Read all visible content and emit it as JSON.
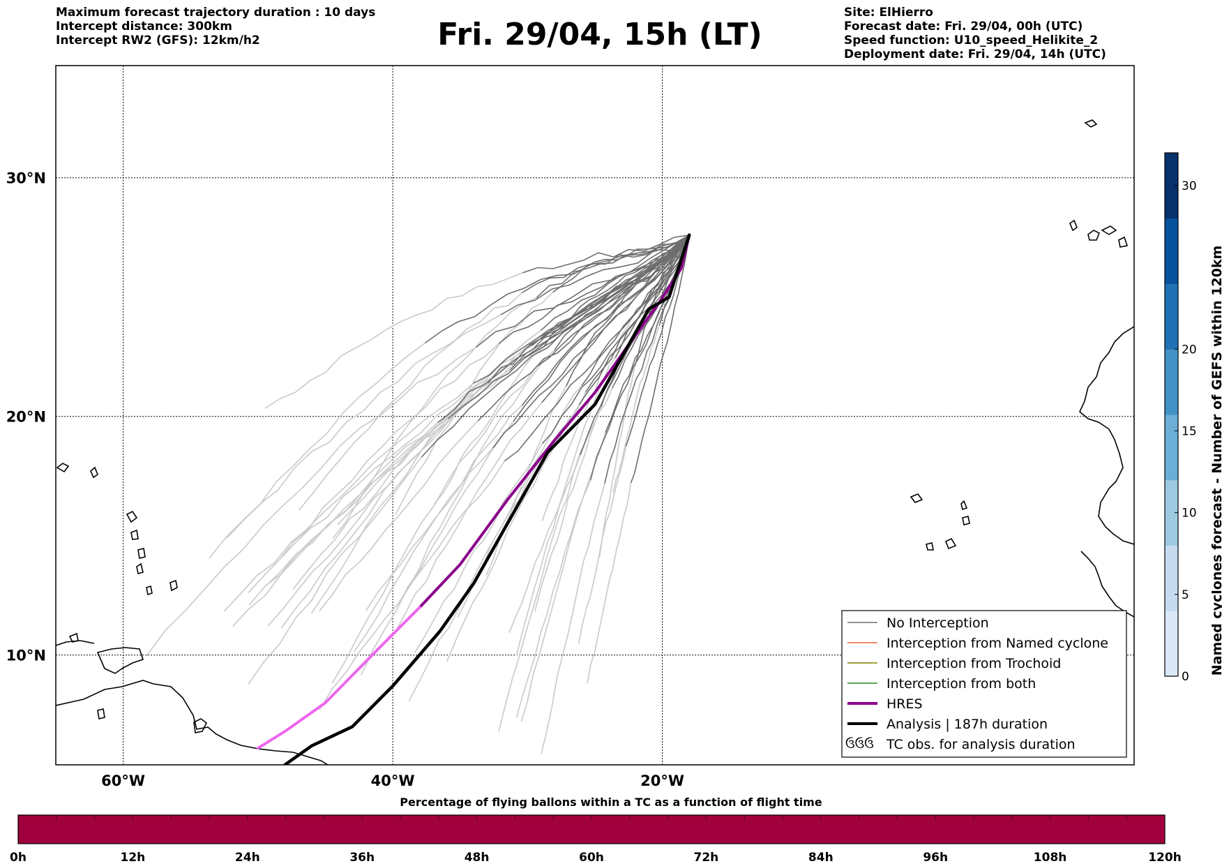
{
  "header": {
    "left_lines": [
      "Maximum forecast trajectory duration : 10 days",
      "Intercept distance: 300km",
      "Intercept RW2 (GFS):  12km/h2"
    ],
    "title": "Fri. 29/04, 15h (LT)",
    "right_lines": [
      "Site: ElHierro",
      "Forecast date: Fri. 29/04, 00h (UTC)",
      "Speed function: U10_speed_Helikite_2",
      "Deployment date: Fri. 29/04, 14h (UTC)"
    ]
  },
  "map": {
    "lon_range": [
      -65,
      15
    ],
    "lat_range": [
      5.4,
      34.7
    ],
    "lon_ticks": [
      {
        "value": -60,
        "label": "60°W"
      },
      {
        "value": -40,
        "label": "40°W"
      },
      {
        "value": -20,
        "label": "20°W"
      }
    ],
    "lat_ticks": [
      {
        "value": 30,
        "label": "30°N"
      },
      {
        "value": 20,
        "label": "20°N"
      },
      {
        "value": 10,
        "label": "10°N"
      }
    ],
    "grid": true,
    "legend": {
      "placement": "lower-right",
      "entries": [
        {
          "label": "No Interception",
          "color": "#6e6e6e"
        },
        {
          "label": "Interception from Named cyclone",
          "color": "#e8632c"
        },
        {
          "label": "Interception from Trochoid",
          "color": "#808000"
        },
        {
          "label": "Interception from both",
          "color": "#228b22"
        },
        {
          "label": "HRES",
          "color": "#8b008b"
        },
        {
          "label": "Analysis | 187h duration",
          "color": "#000000"
        },
        {
          "label": "TC obs. for analysis duration",
          "color": "#000000"
        }
      ],
      "tc_symbol": "ઉઉઉ"
    }
  },
  "colorbar": {
    "label": "Named cyclones forecast - Number of GEFS within 120km",
    "min": 0,
    "max": 32,
    "ticks": [
      "0",
      "5",
      "10",
      "15",
      "20",
      "30"
    ],
    "colors": [
      "#dbe8f6",
      "#c6dbef",
      "#9ecae1",
      "#6baed6",
      "#4292c6",
      "#2171b5",
      "#08519c",
      "#08306b"
    ]
  },
  "timebar": {
    "title": "Percentage of flying ballons within a TC as a function of flight time",
    "color": "#a0003c",
    "ticks": [
      "0h",
      "12h",
      "24h",
      "36h",
      "48h",
      "60h",
      "72h",
      "84h",
      "96h",
      "108h",
      "120h"
    ]
  },
  "chart_data": {
    "type": "line",
    "site": {
      "lon": -18.0,
      "lat": 27.6
    },
    "hres_track": [
      [
        -18.0,
        27.6
      ],
      [
        -18.6,
        26.2
      ],
      [
        -20.2,
        24.8
      ],
      [
        -22.5,
        23.0
      ],
      [
        -25.0,
        21.0
      ],
      [
        -28.0,
        19.0
      ],
      [
        -31.5,
        16.5
      ],
      [
        -35.0,
        13.8
      ],
      [
        -38.0,
        12.0
      ],
      [
        -41.0,
        10.3
      ],
      [
        -45.0,
        8.0
      ],
      [
        -48.0,
        6.8
      ],
      [
        -50.0,
        6.1
      ]
    ],
    "analysis_track": [
      [
        -18.0,
        27.6
      ],
      [
        -19.5,
        25.0
      ],
      [
        -21.0,
        24.5
      ],
      [
        -25.0,
        20.5
      ],
      [
        -28.5,
        18.5
      ],
      [
        -31.0,
        16.0
      ],
      [
        -34.0,
        13.0
      ],
      [
        -36.5,
        11.0
      ],
      [
        -40.0,
        8.7
      ],
      [
        -43.0,
        7.0
      ],
      [
        -46.0,
        6.2
      ],
      [
        -48.0,
        5.4
      ]
    ]
  }
}
